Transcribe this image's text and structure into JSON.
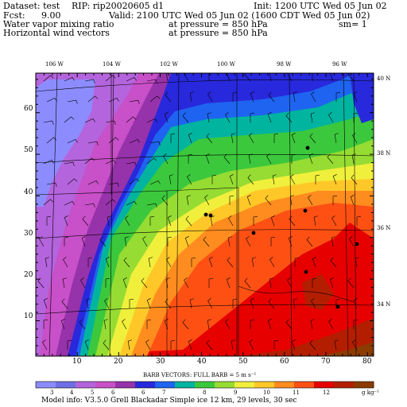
{
  "header": {
    "dataset": "Dataset: test",
    "rip": "RIP: rip20020605 d1",
    "init": "Init: 1200 UTC Wed 05 Jun 02",
    "fcst_label": "Fcst:",
    "fcst_value": "9.00",
    "valid": "Valid: 2100 UTC Wed 05 Jun 02 (1600 CDT Wed 05 Jun 02)",
    "field1": "Water vapor mixing ratio",
    "field1_level": "at pressure =  850 hPa",
    "field1_extra": "sm= 1",
    "field2": "Horizontal wind vectors",
    "field2_level": "at pressure =  850 hPa"
  },
  "longitudes": [
    "106 W",
    "104 W",
    "102 W",
    "100 W",
    "98 W",
    "96 W"
  ],
  "latitudes": [
    "40 N",
    "38 N",
    "36 N",
    "34 N"
  ],
  "y_ticks": [
    "60",
    "50",
    "40",
    "30",
    "20",
    "10"
  ],
  "x_ticks": [
    "10",
    "20",
    "30",
    "40",
    "50",
    "60",
    "70",
    "80"
  ],
  "barb_caption": "BARB VECTORS:  FULL BARB = 5 m s⁻¹",
  "colorbar": {
    "labels": [
      "3",
      "4",
      "5",
      "6",
      "6",
      "7",
      "8",
      "9",
      "10",
      "11",
      "12"
    ],
    "units": "g kg⁻¹",
    "colors": [
      "#8c8cff",
      "#6e6ee6",
      "#b464dc",
      "#c850c8",
      "#9632aa",
      "#2828dc",
      "#1e64f0",
      "#00b4a0",
      "#3cc83c",
      "#96dc32",
      "#f0f03c",
      "#ffc828",
      "#ff8c1e",
      "#ff5014",
      "#e60000",
      "#b41e00",
      "#8c3c00"
    ]
  },
  "footer": "Model info: V3.5.0  Grell    Blackadar  Simple ice    12 km,  29 levels,   30 sec"
}
